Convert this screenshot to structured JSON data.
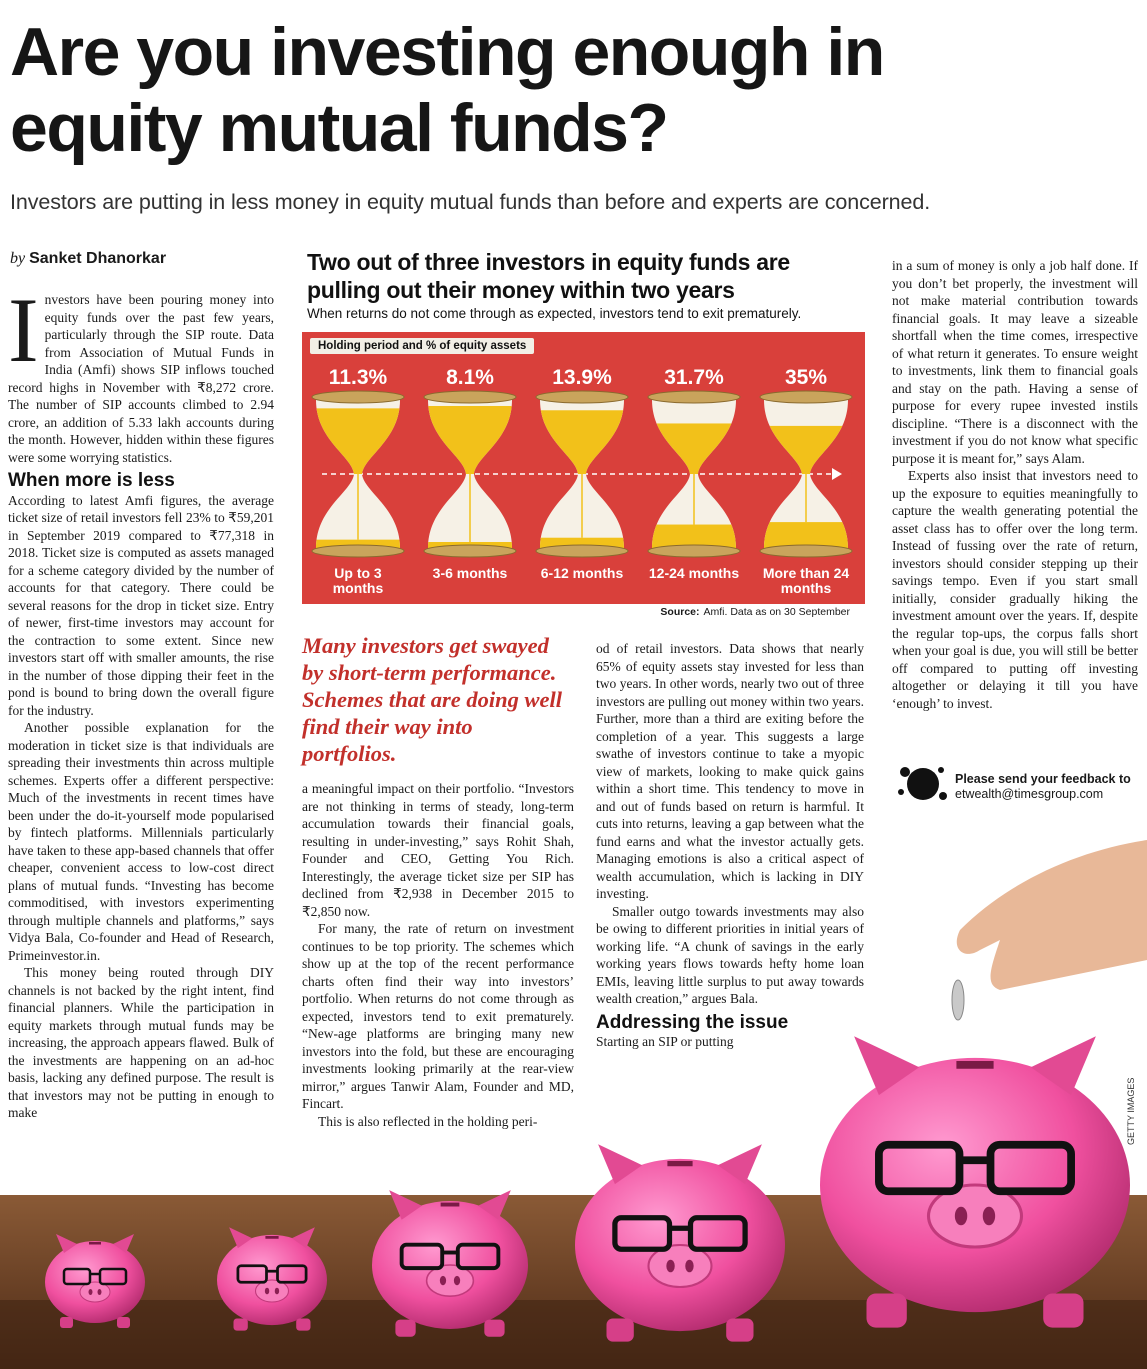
{
  "header": {
    "title": "Are you investing enough in equity mutual funds?",
    "subtitle": "Investors are putting in less money in equity mutual funds than before and experts are concerned."
  },
  "byline": {
    "prefix": "by",
    "author": "Sanket Dhanorkar"
  },
  "column_1": {
    "intro": "Investors have been pouring money into equity funds over the past few years, particularly through the SIP route. Data from Association of Mutual Funds in India (Amfi) shows SIP inflows touched record highs in November with ₹8,272 crore. The number of SIP accounts climbed to 2.94 crore, an addition of 5.33 lakh accounts during the month. However, hidden within these figures were some worrying statistics.",
    "heading": "When more is less",
    "paragraphs": [
      "According to latest Amfi figures, the average ticket size of retail investors fell 23% to ₹59,201 in September 2019 compared to ₹77,318 in 2018. Ticket size is computed as assets managed for a scheme category divided by the number of accounts for that category. There could be several reasons for the drop in ticket size. Entry of newer, first-time investors may account for the contraction to some extent. Since new investors start off with smaller amounts, the rise in the number of those dipping their feet in the pond is bound to bring down the overall figure for the industry.",
      "Another possible explanation for the moderation in ticket size is that individuals are spreading their investments thin across multiple schemes. Experts offer a different perspective: Much of the investments in recent times have been under the do-it-yourself mode popularised by fintech platforms. Millennials particularly have taken to these app-based channels that offer cheaper, convenient access to low-cost direct plans of mutual funds. “Investing has become commoditised, with investors experimenting through multiple channels and platforms,” says Vidya Bala, Co-founder and Head of Research, Primeinvestor.in.",
      "This money being routed through DIY channels is not backed by the right intent, find financial planners. While the participation in equity markets through mutual funds may be increasing, the approach appears flawed. Bulk of the investments are happening on an ad-hoc basis, lacking any defined purpose. The result is that investors may not be putting in enough to make"
    ]
  },
  "infographic": {
    "title": "Two out of three investors in equity funds are pulling out their money within two years",
    "subtitle": "When returns do not come through as expected, investors tend to exit prematurely.",
    "tag": "Holding period and % of equity assets",
    "categories": [
      "Up to 3 months",
      "3-6 months",
      "6-12 months",
      "12-24 months",
      "More than 24 months"
    ],
    "values": [
      11.3,
      8.1,
      13.9,
      31.7,
      35
    ],
    "value_labels": [
      "11.3%",
      "8.1%",
      "13.9%",
      "31.7%",
      "35%"
    ],
    "source_label": "Source:",
    "source": "Amfi. Data as on 30 September"
  },
  "pull_quote": "Many investors get swayed by short-term performance. Schemes that are doing well find their way into portfolios.",
  "column_2": {
    "paragraphs": [
      "a meaningful impact on their portfolio. “Investors are not thinking in terms of steady, long-term accumulation towards their financial goals, resulting in under-investing,” says Rohit Shah, Founder and CEO, Getting You Rich. Interestingly, the average ticket size per SIP has declined from ₹2,938 in December 2015 to ₹2,850 now.",
      "For many, the rate of return on investment continues to be top priority. The schemes which show up at the top of the recent performance charts often find their way into investors’ portfolio. When returns do not come through as expected, investors tend to exit prematurely. “New-age platforms are bringing many new investors into the fold, but these are encouraging investments looking primarily at the rear-view mirror,” argues Tanwir Alam, Founder and MD, Fincart.",
      "This is also reflected in the holding peri-"
    ]
  },
  "column_3": {
    "paragraphs": [
      "od of retail investors. Data shows that nearly 65% of equity assets stay invested for less than two years. In other words, nearly two out of three investors are pulling out money within two years. Further, more than a third are exiting before the completion of a year. This suggests a large swathe of investors continue to take a myopic view of markets, looking to make quick gains within a short time. This tendency to move in and out of funds based on return is harmful. It cuts into returns, leaving a gap between what the fund earns and what the investor actually gets. Managing emotions is also a critical aspect of wealth accumulation, which is lacking in DIY investing.",
      "Smaller outgo towards investments may also be owing to different priorities in initial years of working life. “A chunk of savings in the early working years flows towards hefty home loan EMIs, leaving little surplus to put away towards wealth creation,” argues Bala."
    ],
    "heading": "Addressing the issue",
    "after": "Starting an SIP or putting"
  },
  "column_4": {
    "paragraphs": [
      "in a sum of money is only a job half done. If you don’t bet properly, the investment will not make material contribution towards financial goals. It may leave a sizeable shortfall when the time comes, irrespective of what return it generates. To ensure weight to investments, link them to financial goals and stay on the path. Having a sense of purpose for every rupee invested instils discipline. “There is a disconnect with the investment if you do not know what specific purpose it is meant for,” says Alam.",
      "Experts also insist that investors need to up the exposure to equities meaningfully to capture the wealth generating potential the asset class has to offer over the long term. Instead of fussing over the rate of return, investors should consider stepping up their savings tempo. Even if you start small initially, consider gradually hiking the investment amount over the years. If, despite the regular top-ups, the corpus falls short when your goal is due, you will still be better off compared to putting off investing altogether or delaying it till you have ‘enough’ to invest."
    ]
  },
  "feedback": {
    "text": "Please send your feedback to",
    "email": "etwealth@timesgroup.com"
  },
  "credit": "GETTY IMAGES"
}
